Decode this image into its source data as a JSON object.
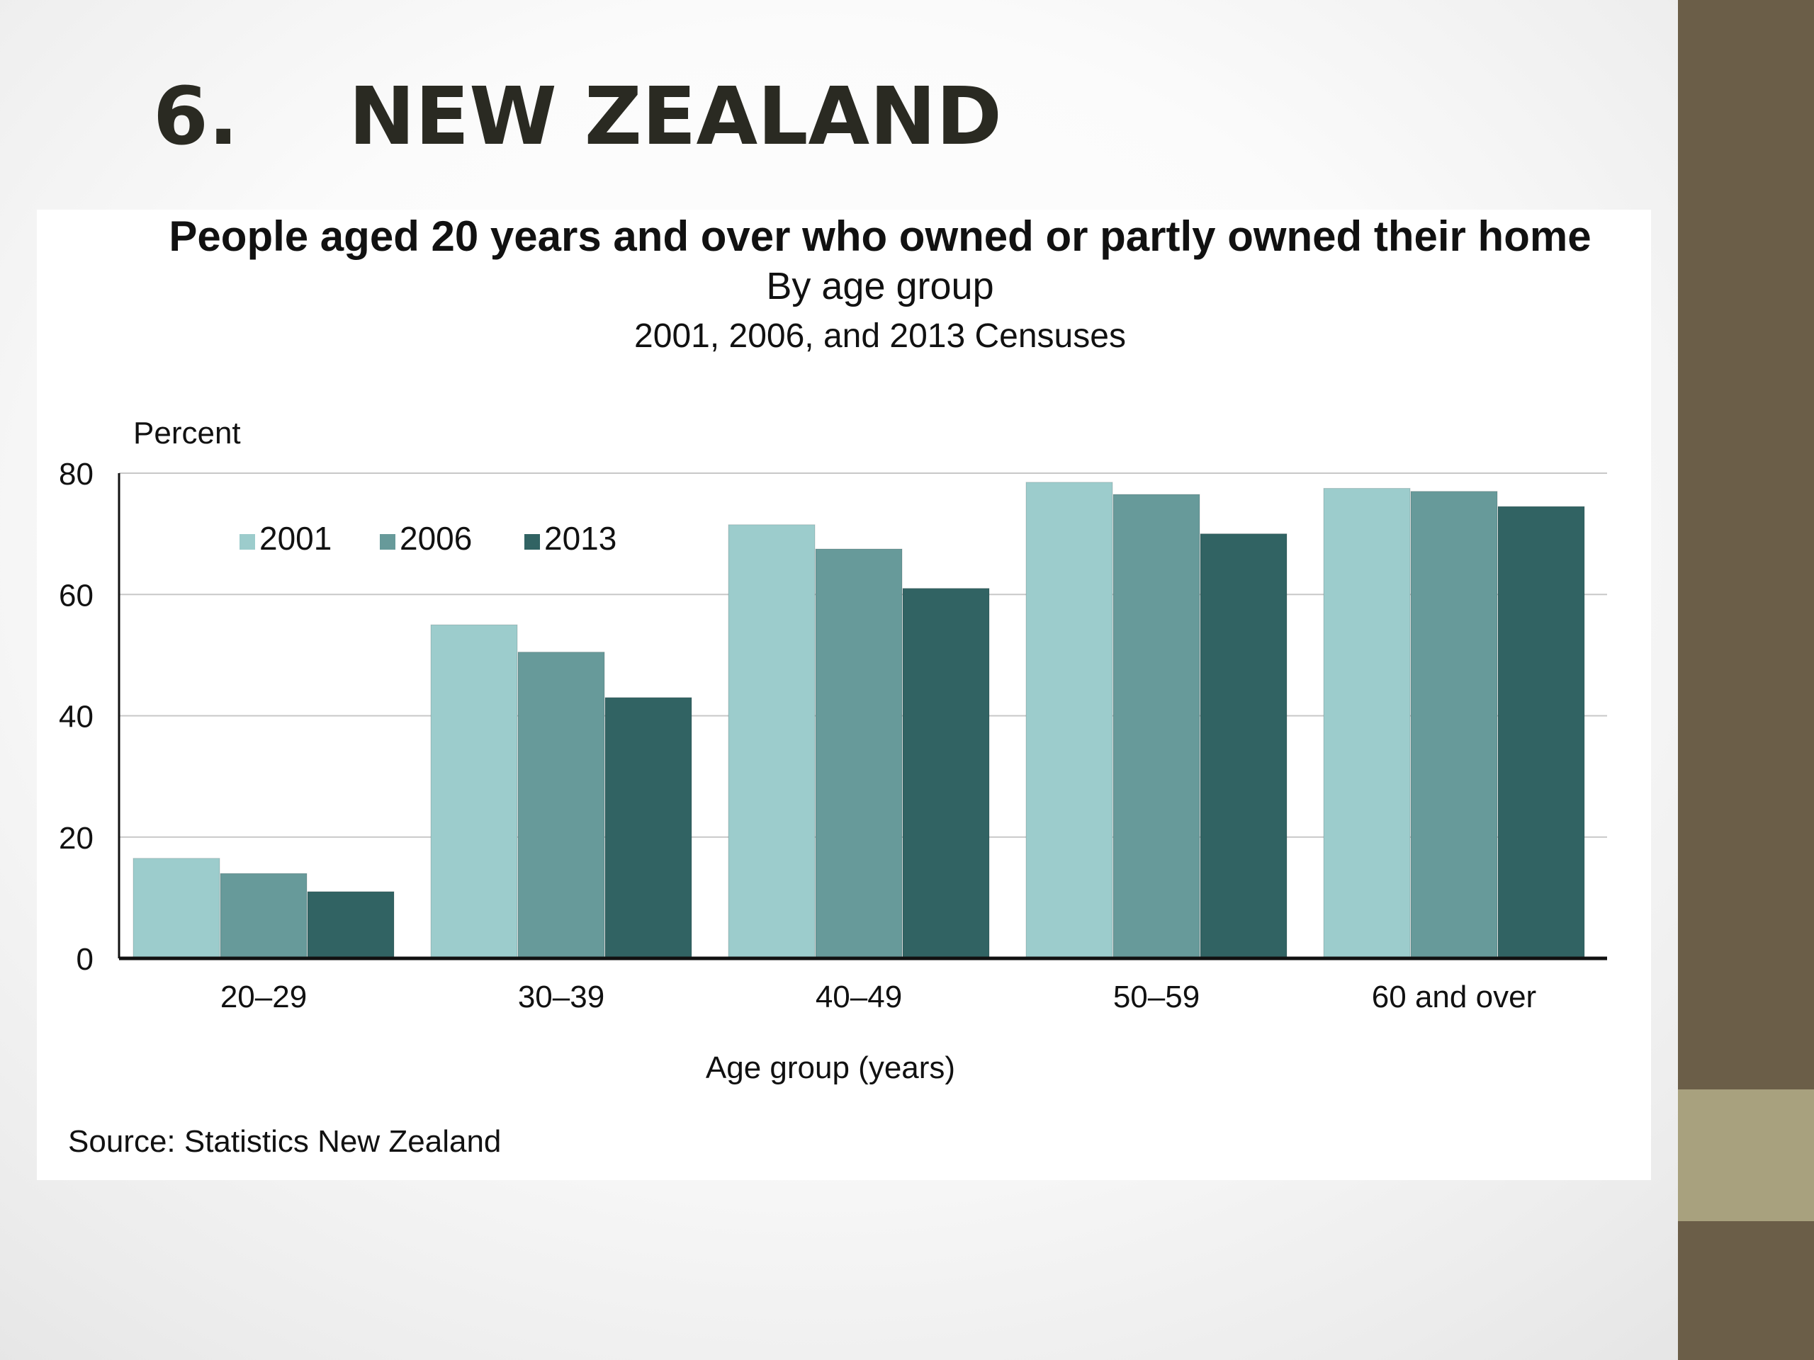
{
  "slide": {
    "number": "6.",
    "heading": "NEW ZEALAND"
  },
  "colors": {
    "band": "#6b5e48",
    "band_accent": "#a8a17e",
    "grid": "#c8c8c8",
    "axis": "#111111"
  },
  "chart_data": {
    "type": "bar",
    "title": "People aged 20 years and over who owned or partly owned their home",
    "subtitle": "By age group",
    "subtitle2": "2001, 2006, and 2013 Censuses",
    "ylabel": "Percent",
    "xlabel": "Age group (years)",
    "source": "Source: Statistics New Zealand",
    "categories": [
      "20–29",
      "30–39",
      "40–49",
      "50–59",
      "60 and over"
    ],
    "ylim": [
      0,
      80
    ],
    "yticks": [
      0,
      20,
      40,
      60,
      80
    ],
    "grid": true,
    "legend_position": "top-left",
    "series": [
      {
        "name": "2001",
        "color": "#9ccccc",
        "values": [
          16.5,
          55,
          71.5,
          78.5,
          77.5
        ]
      },
      {
        "name": "2006",
        "color": "#679a9a",
        "values": [
          14,
          50.5,
          67.5,
          76.5,
          77
        ]
      },
      {
        "name": "2013",
        "color": "#316363",
        "values": [
          11,
          43,
          61,
          70,
          74.5
        ]
      }
    ]
  }
}
